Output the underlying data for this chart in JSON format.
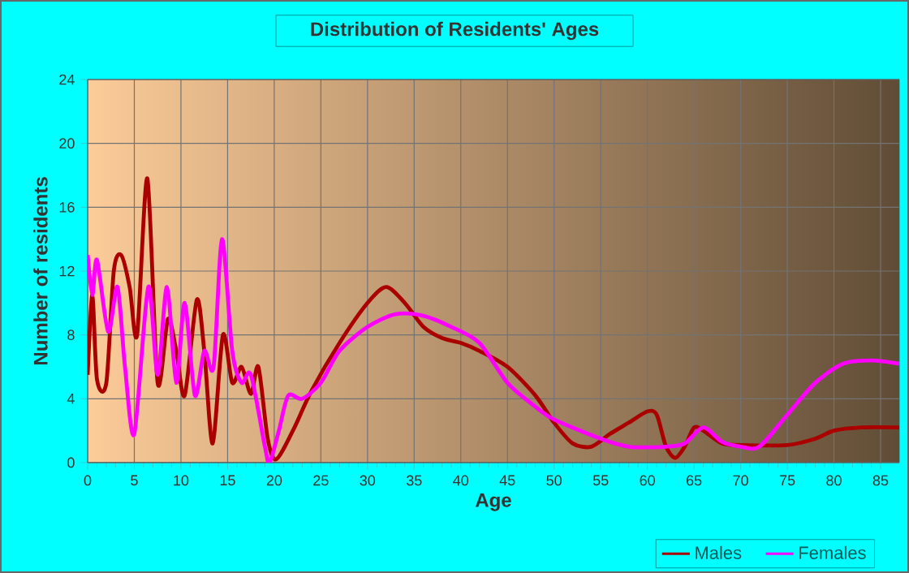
{
  "chart_data": {
    "type": "line",
    "title": "Distribution of Residents' Ages",
    "xlabel": "Age",
    "ylabel": "Number of residents",
    "xlim": [
      0,
      87
    ],
    "ylim": [
      0,
      24
    ],
    "xticks": [
      0,
      5,
      10,
      15,
      20,
      25,
      30,
      35,
      40,
      45,
      50,
      55,
      60,
      65,
      70,
      75,
      80,
      85
    ],
    "yticks": [
      0,
      4,
      8,
      12,
      16,
      20,
      24
    ],
    "grid": true,
    "legend": "bottom",
    "line_style": "solid",
    "marker": "none",
    "series": [
      {
        "name": "Males",
        "color": "#aa0000",
        "x": [
          0,
          0.5,
          1,
          2,
          2.8,
          3.6,
          4.5,
          5.3,
          6.4,
          7.5,
          8.6,
          9.5,
          10.4,
          11.7,
          12.5,
          13.4,
          14.5,
          15.5,
          16.5,
          17.5,
          18.3,
          19.3,
          20.2,
          22,
          24,
          27,
          30,
          32,
          34,
          36,
          38,
          40,
          42,
          45,
          48,
          50,
          52,
          54,
          56,
          58,
          60,
          61,
          62,
          63,
          64,
          65,
          66,
          68,
          70,
          75,
          78,
          80,
          83,
          87
        ],
        "values": [
          5.5,
          10.5,
          5.2,
          5,
          12,
          13,
          11,
          8,
          17.8,
          5,
          9,
          7,
          4.2,
          10.2,
          7,
          1.2,
          8,
          5,
          6,
          4.3,
          6,
          1.5,
          0.2,
          2,
          4.5,
          7.5,
          10,
          11,
          10,
          8.5,
          7.8,
          7.5,
          7,
          6,
          4.2,
          2.5,
          1.2,
          1,
          1.8,
          2.5,
          3.2,
          3,
          1,
          0.3,
          1,
          2.2,
          2,
          1.2,
          1.1,
          1.1,
          1.5,
          2,
          2.2,
          2.2
        ]
      },
      {
        "name": "Females",
        "color": "#ff00ff",
        "x": [
          0,
          0.5,
          1,
          2.2,
          3.2,
          4,
          5,
          6.5,
          7.5,
          8.5,
          9.5,
          10.4,
          11.5,
          12.5,
          13.5,
          14.4,
          15.5,
          16.5,
          17.5,
          19,
          19.5,
          20.5,
          21.5,
          23,
          25,
          27,
          30,
          33,
          36,
          39,
          42,
          45,
          48,
          50,
          55,
          58,
          62,
          64,
          66,
          68,
          70,
          72,
          75,
          78,
          81,
          84,
          87
        ],
        "values": [
          13,
          10.5,
          12.7,
          8.2,
          11,
          6,
          1.8,
          11,
          5.5,
          11,
          5,
          10,
          4.2,
          7,
          6,
          14,
          7,
          5,
          5.5,
          1,
          0,
          2,
          4.2,
          4,
          5,
          7,
          8.5,
          9.3,
          9.2,
          8.5,
          7.5,
          5,
          3.5,
          2.7,
          1.5,
          1,
          1,
          1.2,
          2.2,
          1.3,
          1,
          1,
          3,
          5,
          6.2,
          6.4,
          6.2
        ]
      }
    ]
  }
}
